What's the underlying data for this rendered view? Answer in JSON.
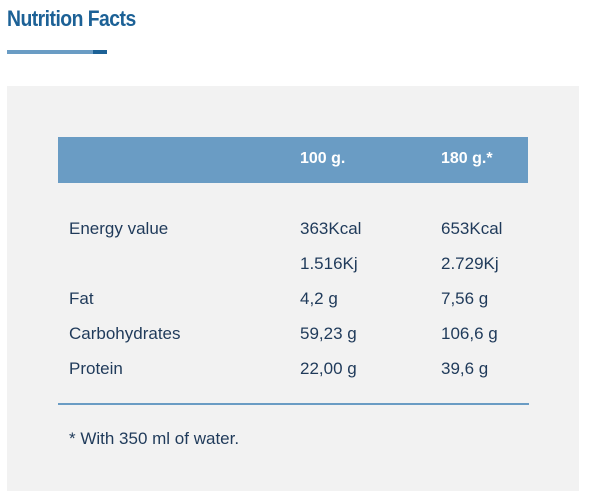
{
  "title": "Nutrition Facts",
  "table": {
    "headers": [
      "",
      "100 g.",
      "180 g.*"
    ],
    "rows": [
      [
        "Energy value",
        "363Kcal",
        "653Kcal"
      ],
      [
        "",
        "1.516Kj",
        "2.729Kj"
      ],
      [
        "Fat",
        "4,2 g",
        "7,56 g"
      ],
      [
        "Carbohydrates",
        "59,23 g",
        "106,6 g"
      ],
      [
        "Protein",
        "22,00 g",
        "39,6 g"
      ]
    ]
  },
  "footnote": "* With 350 ml of water.",
  "colors": {
    "accent": "#1c6196",
    "header_bg": "#6a9cc4",
    "panel_bg": "#f2f2f2",
    "text": "#1f3a5a"
  }
}
